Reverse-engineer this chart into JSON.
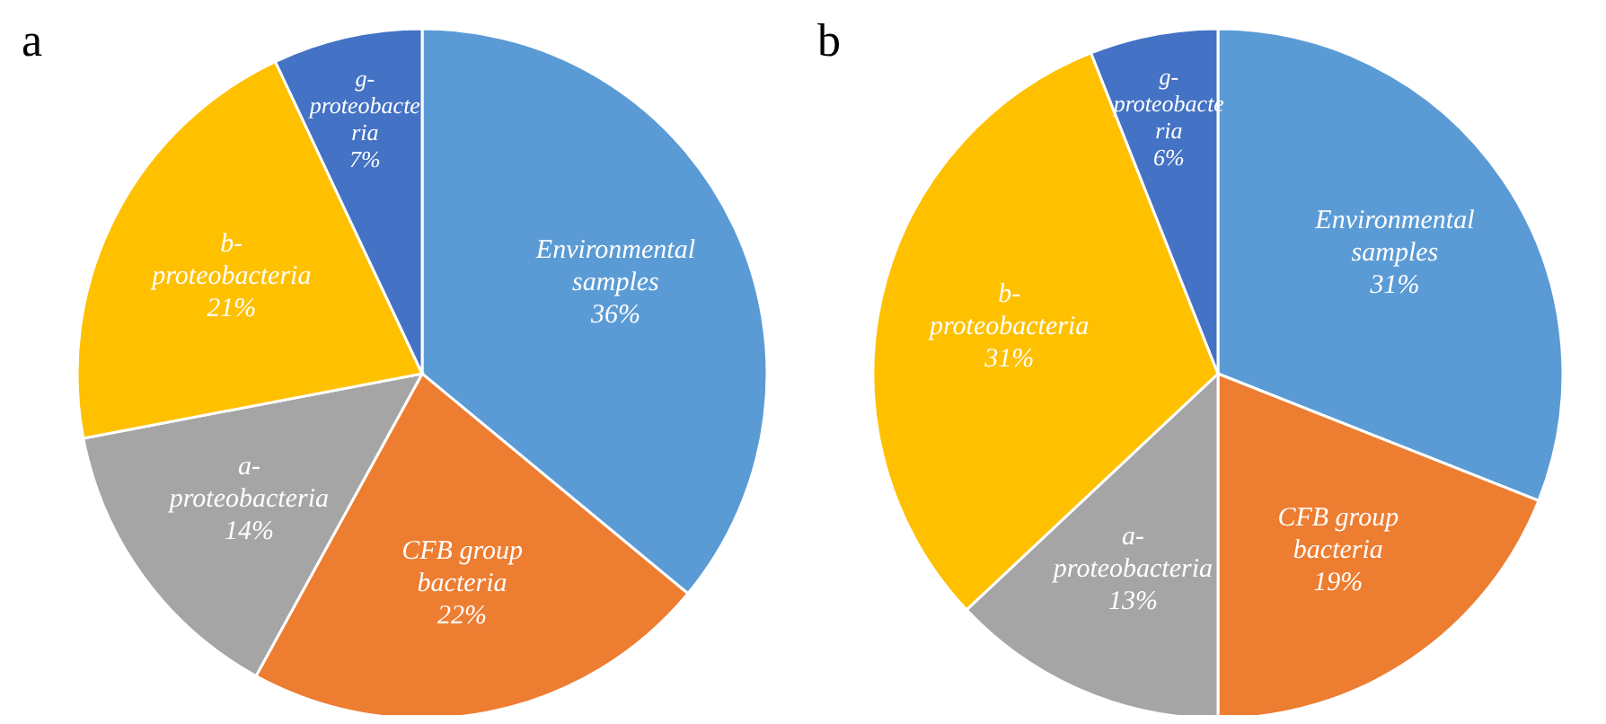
{
  "chart_data": [
    {
      "type": "pie",
      "title": "a",
      "categories": [
        "Environmental samples",
        "CFB group bacteria",
        "a-proteobacteria",
        "b-proteobacteria",
        "g-proteobacteria"
      ],
      "values": [
        36,
        22,
        14,
        21,
        7
      ],
      "value_labels": [
        "36%",
        "22%",
        "14%",
        "21%",
        "7%"
      ],
      "colors": [
        "#5b9bd5",
        "#ed7d31",
        "#a5a5a5",
        "#ffc000",
        "#4472c4"
      ]
    },
    {
      "type": "pie",
      "title": "b",
      "categories": [
        "Environmental samples",
        "CFB group bacteria",
        "a-proteobacteria",
        "b-proteobacteria",
        "g-proteobacteria"
      ],
      "values": [
        31,
        19,
        13,
        31,
        6
      ],
      "value_labels": [
        "31%",
        "19%",
        "13%",
        "31%",
        "6%"
      ],
      "colors": [
        "#5b9bd5",
        "#ed7d31",
        "#a5a5a5",
        "#ffc000",
        "#4472c4"
      ]
    }
  ]
}
